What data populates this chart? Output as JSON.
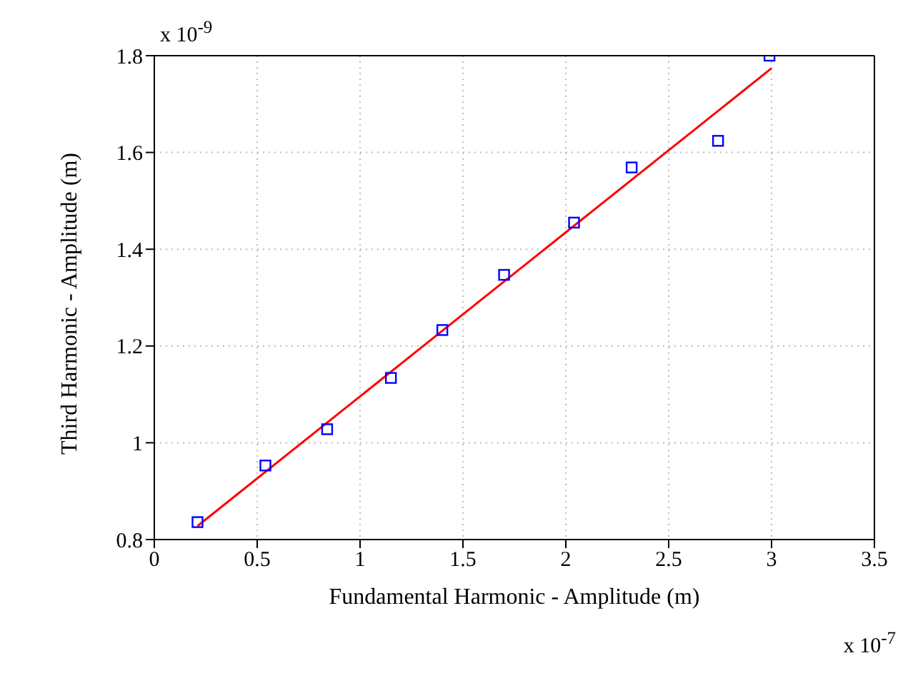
{
  "chart_data": {
    "type": "scatter",
    "xlabel": "Fundamental Harmonic - Amplitude (m)",
    "ylabel": "Third Harmonic - Amplitude (m)",
    "annotations": [
      "x 10$^{-9}$",
      "x 10$^{-7}$"
    ],
    "series": [
      {
        "color": "#0000ff",
        "marker": "square",
        "x": [
          0.21,
          0.54,
          0.84,
          1.15,
          1.4,
          1.7,
          2.04,
          2.32,
          2.74,
          2.99
        ],
        "values": [
          0.836,
          0.953,
          1.028,
          1.134,
          1.233,
          1.347,
          1.455,
          1.569,
          1.624,
          1.8
        ]
      },
      {
        "type": "line",
        "color": "#ff0000",
        "marker": "none",
        "line_style": "solid",
        "x": [
          0.21,
          3.0
        ],
        "values": [
          0.828,
          1.774
        ]
      }
    ],
    "xlim": [
      0,
      3.5
    ],
    "xticks": [
      0,
      0.5,
      1,
      1.5,
      2,
      2.5,
      3,
      3.5
    ],
    "ylim": [
      0.8,
      1.8
    ],
    "yticks": [
      0.8,
      1,
      1.2,
      1.4,
      1.6,
      1.8
    ],
    "grid": true,
    "legend": false
  }
}
